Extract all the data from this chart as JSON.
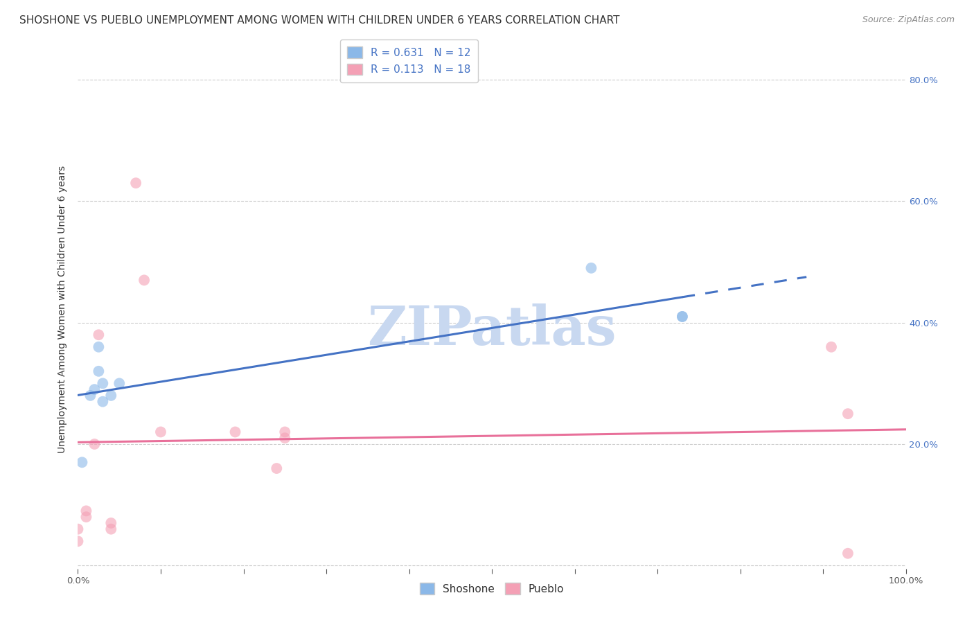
{
  "title": "SHOSHONE VS PUEBLO UNEMPLOYMENT AMONG WOMEN WITH CHILDREN UNDER 6 YEARS CORRELATION CHART",
  "source": "Source: ZipAtlas.com",
  "ylabel": "Unemployment Among Women with Children Under 6 years",
  "shoshone_color": "#8BB8E8",
  "pueblo_color": "#F4A0B5",
  "shoshone_line_color": "#4472C4",
  "pueblo_line_color": "#E8709A",
  "background_color": "#FFFFFF",
  "grid_color": "#CCCCCC",
  "legend_label_shoshone": "Shoshone",
  "legend_label_pueblo": "Pueblo",
  "shoshone_R": "0.631",
  "shoshone_N": "12",
  "pueblo_R": "0.113",
  "pueblo_N": "18",
  "xlim": [
    0,
    1.0
  ],
  "ylim": [
    -0.005,
    0.85
  ],
  "xticks": [
    0.0,
    0.1,
    0.2,
    0.3,
    0.4,
    0.5,
    0.6,
    0.7,
    0.8,
    0.9,
    1.0
  ],
  "yticks": [
    0.0,
    0.2,
    0.4,
    0.6,
    0.8
  ],
  "xticklabels": [
    "0.0%",
    "",
    "",
    "",
    "",
    "",
    "",
    "",
    "",
    "",
    "100.0%"
  ],
  "yticklabels_right": [
    "",
    "20.0%",
    "40.0%",
    "60.0%",
    "80.0%"
  ],
  "shoshone_x": [
    0.005,
    0.015,
    0.02,
    0.025,
    0.025,
    0.03,
    0.03,
    0.04,
    0.05,
    0.62,
    0.73,
    0.73
  ],
  "shoshone_y": [
    0.17,
    0.28,
    0.29,
    0.36,
    0.32,
    0.3,
    0.27,
    0.28,
    0.3,
    0.49,
    0.41,
    0.41
  ],
  "pueblo_x": [
    0.0,
    0.0,
    0.01,
    0.01,
    0.02,
    0.025,
    0.04,
    0.04,
    0.07,
    0.08,
    0.1,
    0.19,
    0.24,
    0.25,
    0.25,
    0.91,
    0.93,
    0.93
  ],
  "pueblo_y": [
    0.04,
    0.06,
    0.08,
    0.09,
    0.2,
    0.38,
    0.07,
    0.06,
    0.63,
    0.47,
    0.22,
    0.22,
    0.16,
    0.21,
    0.22,
    0.36,
    0.25,
    0.02
  ],
  "watermark_text": "ZIPatlas",
  "watermark_color": "#C8D8F0",
  "marker_size": 130,
  "marker_alpha": 0.6,
  "line_width": 2.2,
  "title_fontsize": 11,
  "axis_label_fontsize": 10,
  "tick_fontsize": 9.5,
  "legend_fontsize": 11,
  "source_fontsize": 9
}
